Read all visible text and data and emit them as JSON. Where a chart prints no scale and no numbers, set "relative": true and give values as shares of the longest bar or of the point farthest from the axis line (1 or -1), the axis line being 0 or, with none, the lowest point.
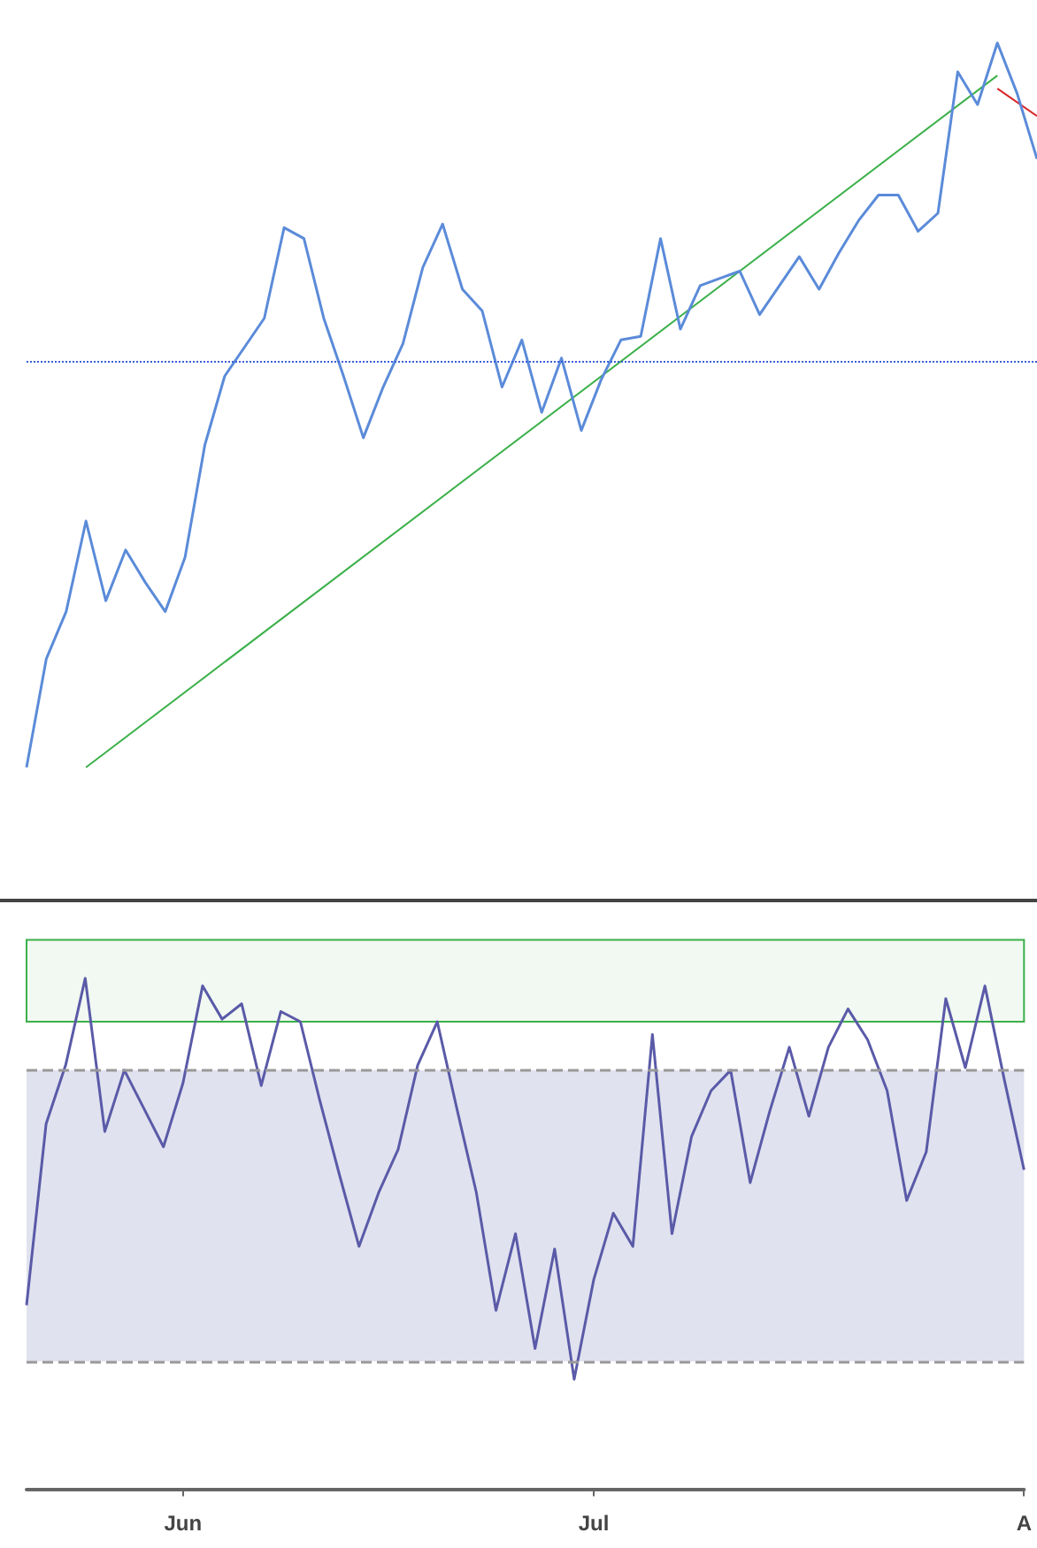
{
  "chart_data": [
    {
      "type": "line",
      "relative": true,
      "categories": [
        null,
        null,
        null,
        null,
        null,
        null,
        null,
        null,
        null,
        null,
        null,
        null,
        null,
        null,
        null,
        null,
        null,
        null,
        null,
        null,
        null,
        null,
        null,
        null,
        null,
        null,
        null,
        null,
        null,
        null,
        null,
        null,
        null,
        null,
        null,
        null,
        null,
        null,
        null,
        null,
        null,
        null,
        null,
        null,
        null,
        null,
        null,
        null,
        null,
        null,
        null,
        null
      ],
      "tick_labels": false,
      "grid": false,
      "marker": "none",
      "line_style": "solid",
      "series": [
        {
          "color": "#5b8bd9",
          "values": [
            0,
            0.15,
            0.215,
            0.34,
            0.23,
            0.3,
            0.255,
            0.215,
            0.29,
            0.445,
            0.54,
            0.58,
            0.62,
            0.745,
            0.73,
            0.62,
            0.54,
            0.455,
            0.525,
            0.585,
            0.69,
            0.75,
            0.66,
            0.63,
            0.525,
            0.59,
            0.49,
            0.565,
            0.465,
            0.535,
            0.59,
            0.595,
            0.73,
            0.605,
            0.665,
            0.675,
            0.685,
            0.625,
            0.665,
            0.705,
            0.66,
            0.71,
            0.755,
            0.79,
            0.79,
            0.74,
            0.765,
            0.96,
            0.915,
            1,
            0.93,
            0.84
          ]
        },
        {
          "color": "#3cb04a",
          "values": [
            null,
            null,
            null,
            0,
            null,
            null,
            null,
            null,
            null,
            null,
            null,
            null,
            null,
            null,
            null,
            null,
            null,
            null,
            null,
            null,
            null,
            null,
            null,
            null,
            null,
            null,
            null,
            null,
            null,
            null,
            null,
            null,
            null,
            null,
            null,
            null,
            null,
            null,
            null,
            null,
            null,
            null,
            null,
            null,
            null,
            null,
            null,
            null,
            null,
            0.955,
            null,
            null
          ]
        },
        {
          "color": "#d62728",
          "values": [
            null,
            null,
            null,
            null,
            null,
            null,
            null,
            null,
            null,
            null,
            null,
            null,
            null,
            null,
            null,
            null,
            null,
            null,
            null,
            null,
            null,
            null,
            null,
            null,
            null,
            null,
            null,
            null,
            null,
            null,
            null,
            null,
            null,
            null,
            null,
            null,
            null,
            null,
            null,
            null,
            null,
            null,
            null,
            null,
            null,
            null,
            null,
            null,
            null,
            0.937,
            null,
            0.899
          ]
        }
      ],
      "ref_lines": [
        {
          "axis": "y",
          "value": 0.56,
          "color": "#3a5fd9",
          "line_style": "dotted"
        }
      ]
    },
    {
      "type": "line",
      "relative": true,
      "categories": [
        null,
        null,
        null,
        null,
        null,
        null,
        null,
        null,
        "Jun",
        null,
        null,
        null,
        null,
        null,
        null,
        null,
        null,
        null,
        null,
        null,
        null,
        null,
        null,
        null,
        null,
        null,
        null,
        null,
        null,
        "Jul",
        null,
        null,
        null,
        null,
        null,
        null,
        null,
        null,
        null,
        null,
        null,
        null,
        null,
        null,
        null,
        null,
        null,
        null,
        null,
        null,
        null,
        "A"
      ],
      "tick_labels": "x",
      "grid": false,
      "marker": "none",
      "line_style": "solid",
      "series": [
        {
          "color": "#5a5aa8",
          "values": [
            0.36,
            0.715,
            0.83,
            1,
            0.7,
            0.82,
            0.745,
            0.67,
            0.795,
            0.985,
            0.92,
            0.95,
            0.79,
            0.935,
            0.915,
            0.76,
            0.615,
            0.475,
            0.58,
            0.665,
            0.83,
            0.915,
            0.745,
            0.58,
            0.35,
            0.5,
            0.275,
            0.47,
            0.215,
            0.41,
            0.54,
            0.475,
            0.89,
            0.5,
            0.69,
            0.78,
            0.82,
            0.6,
            0.74,
            0.865,
            0.73,
            0.865,
            0.94,
            0.88,
            0.78,
            0.565,
            0.66,
            0.96,
            0.825,
            0.985,
            0.8,
            0.625
          ]
        }
      ],
      "ref_lines": [
        {
          "axis": "y",
          "value": 0.25,
          "color": "#999999",
          "line_style": "dashed"
        },
        {
          "axis": "y",
          "value": 0.82,
          "color": "#999999",
          "line_style": "dashed"
        }
      ],
      "bands": [
        {
          "axis": "y",
          "from": 0.25,
          "to": 0.82,
          "color": "#e0e2ef"
        },
        {
          "axis": "y",
          "from": 0.915,
          "to": 1.075,
          "color": "#3cb04a"
        }
      ]
    }
  ]
}
